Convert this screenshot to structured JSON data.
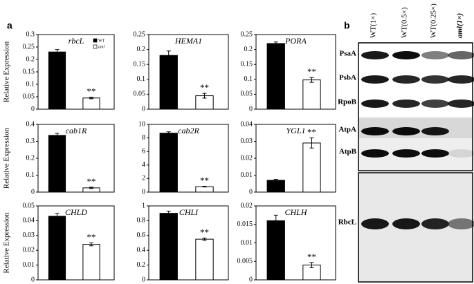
{
  "panels": [
    "a",
    "b"
  ],
  "legend": [
    {
      "name": "WT",
      "color": "#000000"
    },
    {
      "name": "aml",
      "color": "#ffffff"
    }
  ],
  "chart_data": [
    {
      "type": "bar",
      "title": "rbcL",
      "ylabel": "Relative Expression",
      "values": [
        0.23,
        0.045
      ],
      "errors": [
        0.01,
        0.003
      ],
      "annotation": "**",
      "ylim": [
        0,
        0.3
      ],
      "yticks": [
        0,
        0.05,
        0.1,
        0.15,
        0.2,
        0.25,
        0.3
      ]
    },
    {
      "type": "bar",
      "title": "HEMA1",
      "values": [
        0.18,
        0.045
      ],
      "errors": [
        0.015,
        0.008
      ],
      "annotation": "**",
      "ylim": [
        0,
        0.25
      ],
      "yticks": [
        0,
        0.05,
        0.1,
        0.15,
        0.2,
        0.25
      ]
    },
    {
      "type": "bar",
      "title": "PORA",
      "values": [
        0.22,
        0.098
      ],
      "errors": [
        0.005,
        0.008
      ],
      "annotation": "**",
      "ylim": [
        0,
        0.25
      ],
      "yticks": [
        0,
        0.05,
        0.1,
        0.15,
        0.2,
        0.25
      ]
    },
    {
      "type": "bar",
      "title": "cab1R",
      "ylabel": "Relative Expression",
      "values": [
        0.335,
        0.025
      ],
      "errors": [
        0.012,
        0.004
      ],
      "annotation": "**",
      "ylim": [
        0,
        0.4
      ],
      "yticks": [
        0,
        0.1,
        0.2,
        0.3,
        0.4
      ]
    },
    {
      "type": "bar",
      "title": "cab2R",
      "values": [
        8.7,
        0.8
      ],
      "errors": [
        0.2,
        0.05
      ],
      "annotation": "**",
      "ylim": [
        0,
        10
      ],
      "yticks": [
        0,
        2,
        4,
        6,
        8,
        10
      ]
    },
    {
      "type": "bar",
      "title": "YGL1",
      "values": [
        0.007,
        0.029
      ],
      "errors": [
        0.0005,
        0.003
      ],
      "annotation": "**",
      "ylim": [
        0,
        0.04
      ],
      "yticks": [
        0,
        0.01,
        0.02,
        0.03,
        0.04
      ]
    },
    {
      "type": "bar",
      "title": "CHLD",
      "ylabel": "Relative Expression",
      "values": [
        0.043,
        0.024
      ],
      "errors": [
        0.002,
        0.001
      ],
      "annotation": "**",
      "ylim": [
        0,
        0.05
      ],
      "yticks": [
        0,
        0.01,
        0.02,
        0.03,
        0.04,
        0.05
      ]
    },
    {
      "type": "bar",
      "title": "CHLI",
      "values": [
        0.9,
        0.55
      ],
      "errors": [
        0.03,
        0.015
      ],
      "annotation": "**",
      "ylim": [
        0,
        1
      ],
      "yticks": [
        0,
        0.2,
        0.4,
        0.6,
        0.8,
        1
      ]
    },
    {
      "type": "bar",
      "title": "CHLH",
      "values": [
        0.016,
        0.004
      ],
      "errors": [
        0.0015,
        0.0007
      ],
      "annotation": "**",
      "ylim": [
        0,
        0.02
      ],
      "yticks": [
        0,
        0.005,
        0.01,
        0.015,
        0.02
      ]
    }
  ],
  "blot": {
    "lanes": [
      "WT(1×)",
      "WT(0.5×)",
      "WT(0.25×)",
      "aml(1×)"
    ],
    "rows": [
      "PsaA",
      "PsbA",
      "RpoB",
      "AtpA",
      "AtpB",
      "RbcL"
    ]
  }
}
